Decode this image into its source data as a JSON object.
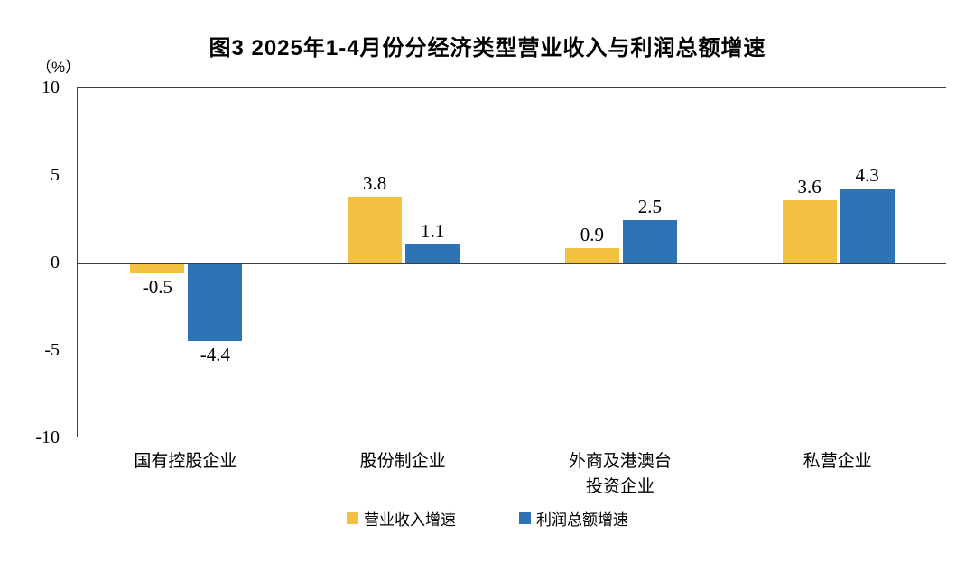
{
  "title": "图3 2025年1-4月份分经济类型营业收入与利润总额增速",
  "chart_data": {
    "type": "bar",
    "title": "图3 2025年1-4月份分经济类型营业收入与利润总额增速",
    "unit_label": "（%）",
    "categories": [
      "国有控股企业",
      "股份制企业",
      "外商及港澳台\n投资企业",
      "私营企业"
    ],
    "series": [
      {
        "name": "营业收入增速",
        "color": "#F2C141",
        "values": [
          -0.5,
          3.8,
          0.9,
          3.6
        ]
      },
      {
        "name": "利润总额增速",
        "color": "#2E74B5",
        "values": [
          -4.4,
          1.1,
          2.5,
          4.3
        ]
      }
    ],
    "ylim": [
      -10,
      10
    ],
    "yticks": [
      10,
      5,
      0,
      -5,
      -10
    ],
    "grid": false,
    "legend_position": "bottom"
  }
}
